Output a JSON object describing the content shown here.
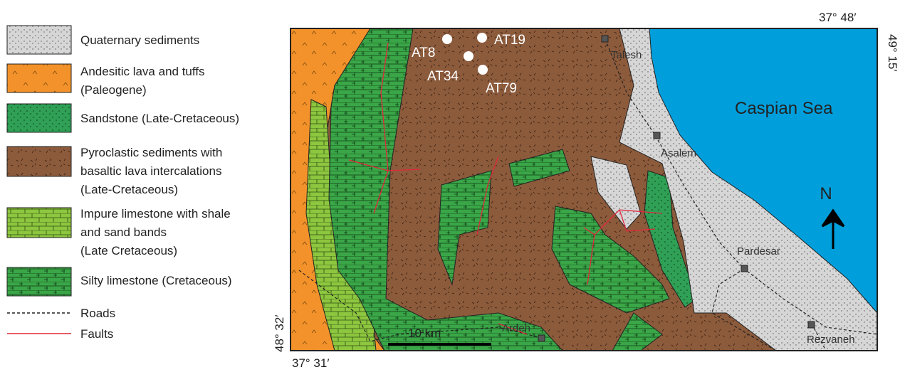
{
  "legend": [
    {
      "lines": [
        "Quaternary sediments"
      ]
    },
    {
      "lines": [
        "Andesitic lava and tuffs",
        "(Paleogene)"
      ]
    },
    {
      "lines": [
        "Sandstone (Late-Cretaceous)"
      ]
    },
    {
      "lines": [
        "Pyroclastic sediments with",
        "basaltic lava intercalations",
        "(Late-Cretaceous)"
      ]
    },
    {
      "lines": [
        "Impure limestone with shale",
        "and sand bands",
        "(Late Cretaceous)"
      ]
    },
    {
      "lines": [
        "Silty limestone (Cretaceous)"
      ]
    },
    {
      "lines": [
        "Roads"
      ]
    },
    {
      "lines": [
        "Faults"
      ]
    }
  ],
  "samples": [
    "AT8",
    "AT19",
    "AT34",
    "AT79"
  ],
  "towns": [
    "Talesh",
    "Asalem",
    "Pardesar",
    "Ardeh",
    "Rezvaneh"
  ],
  "sea_label": "Caspian Sea",
  "north": "N",
  "scale_bar": "10 km",
  "coordinates": {
    "top_right_lat": "37° 48′",
    "right_lon": "49° 15′",
    "left_lon": "48° 32′",
    "bottom_left_lat": "37° 31′"
  }
}
